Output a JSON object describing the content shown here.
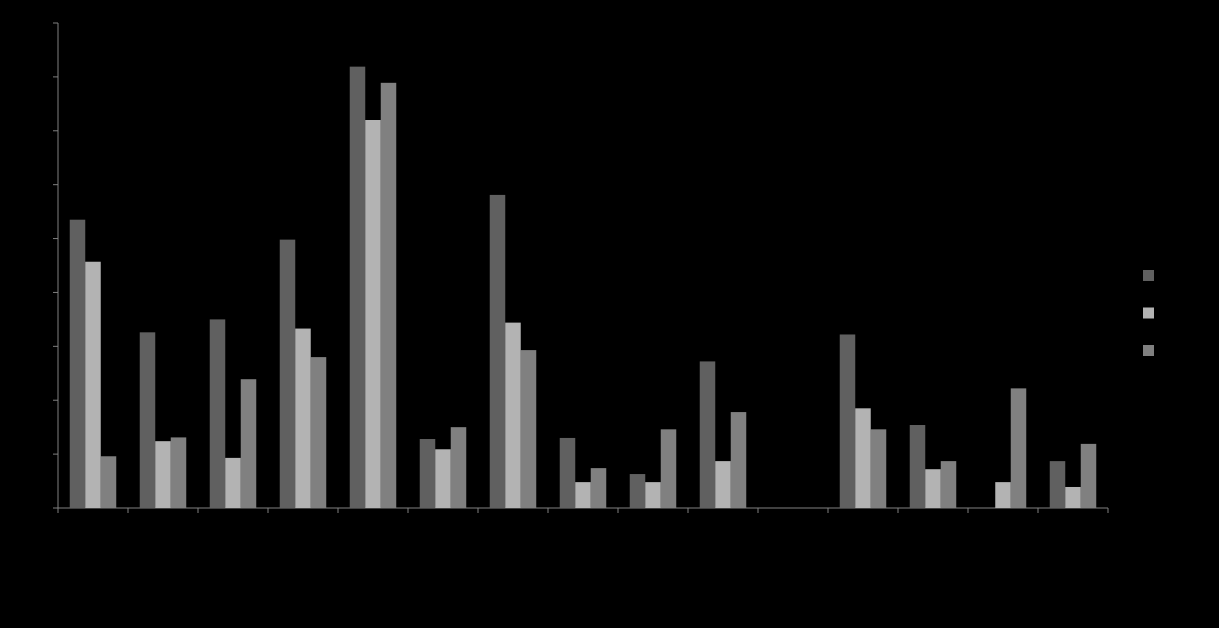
{
  "chart_data": {
    "type": "bar",
    "categories": [
      null,
      null,
      null,
      null,
      null,
      null,
      null,
      null,
      null,
      null,
      null,
      null,
      null,
      null,
      null
    ],
    "series": [
      {
        "color": "#606060",
        "values": [
          5.35,
          3.26,
          3.5,
          4.98,
          8.19,
          1.28,
          5.81,
          1.3,
          0.63,
          2.72,
          0,
          3.22,
          1.54,
          0,
          0.87
        ]
      },
      {
        "color": "#b3b3b3",
        "values": [
          4.57,
          1.24,
          0.93,
          3.33,
          7.2,
          1.09,
          3.44,
          0.48,
          0.48,
          0.87,
          0,
          1.85,
          0.72,
          0.48,
          0.39
        ]
      },
      {
        "color": "#808080",
        "values": [
          0.96,
          1.31,
          2.39,
          2.8,
          7.89,
          1.5,
          2.93,
          0.74,
          1.46,
          1.78,
          0,
          1.46,
          0.87,
          2.22,
          1.19
        ]
      }
    ],
    "ylim": [
      0,
      9
    ],
    "yticks": [
      0,
      1,
      2,
      3,
      4,
      5,
      6,
      7,
      8,
      9
    ],
    "grid": false,
    "legend": "right"
  }
}
